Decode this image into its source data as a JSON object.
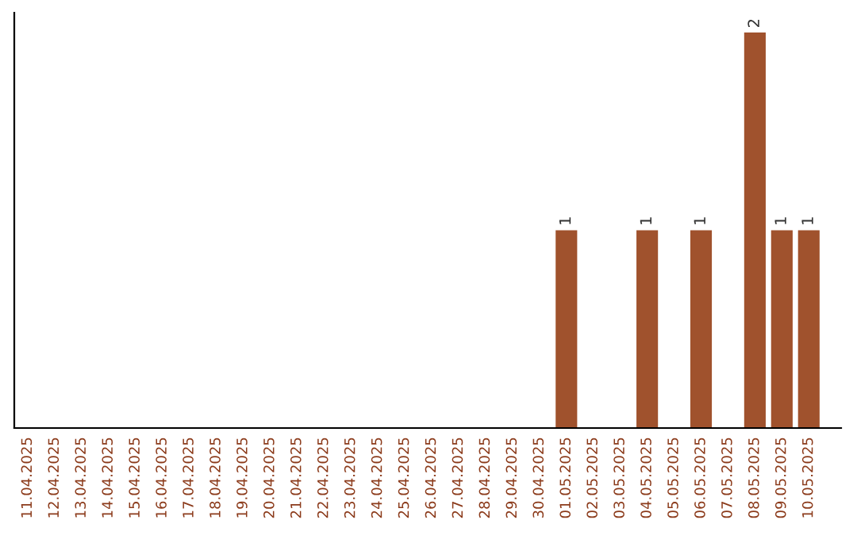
{
  "chart_data": {
    "type": "bar",
    "categories": [
      "11.04.2025",
      "12.04.2025",
      "13.04.2025",
      "14.04.2025",
      "15.04.2025",
      "16.04.2025",
      "17.04.2025",
      "18.04.2025",
      "19.04.2025",
      "20.04.2025",
      "21.04.2025",
      "22.04.2025",
      "23.04.2025",
      "24.04.2025",
      "25.04.2025",
      "26.04.2025",
      "27.04.2025",
      "28.04.2025",
      "29.04.2025",
      "30.04.2025",
      "01.05.2025",
      "02.05.2025",
      "03.05.2025",
      "04.05.2025",
      "05.05.2025",
      "06.05.2025",
      "07.05.2025",
      "08.05.2025",
      "09.05.2025",
      "10.05.2025"
    ],
    "values": [
      null,
      null,
      null,
      null,
      null,
      null,
      null,
      null,
      null,
      null,
      null,
      null,
      null,
      null,
      null,
      null,
      null,
      null,
      null,
      null,
      1,
      null,
      null,
      1,
      null,
      1,
      null,
      2,
      1,
      1
    ],
    "data_labels": true,
    "color": "#a0522d",
    "tick_labels": "x"
  }
}
